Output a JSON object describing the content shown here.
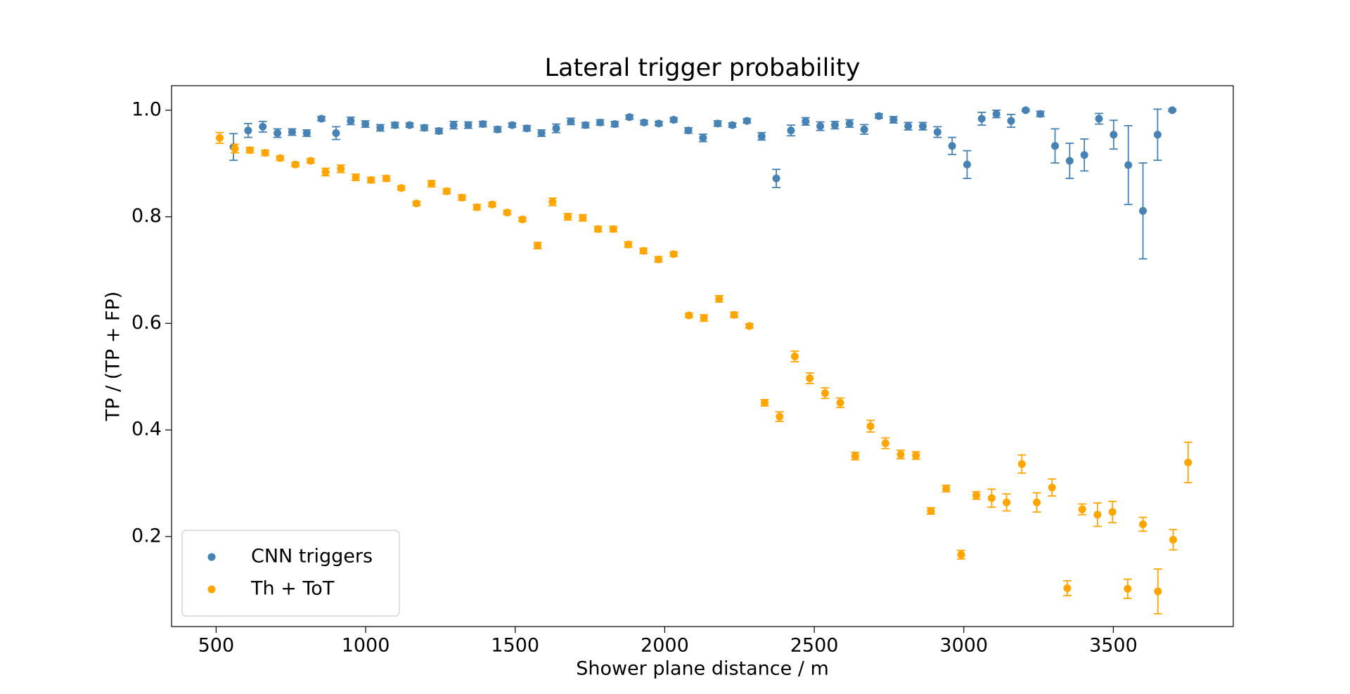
{
  "chart_data": {
    "type": "scatter",
    "title": "Lateral trigger probability",
    "x_label": "Shower plane distance / m",
    "y_label": "TP / (TP + FP)",
    "xlim": [
      351,
      3901
    ],
    "ylim": [
      0.031,
      1.046
    ],
    "xticks": [
      500,
      1000,
      1500,
      2000,
      2500,
      3000,
      3500
    ],
    "yticks": [
      0.2,
      0.4,
      0.6,
      0.8,
      {
        "value": 1,
        "label": "1.0"
      }
    ],
    "grid": false,
    "legend": "lower left",
    "series": [
      {
        "name": "CNN triggers",
        "color": "#4682b4",
        "x": [
          558,
          607,
          656,
          705,
          754,
          803,
          852,
          901,
          950,
          999,
          1049,
          1098,
          1147,
          1196,
          1245,
          1294,
          1343,
          1392,
          1441,
          1490,
          1539,
          1588,
          1637,
          1686,
          1735,
          1784,
          1833,
          1882,
          1931,
          1980,
          2030,
          2079,
          2128,
          2177,
          2226,
          2275,
          2324,
          2373,
          2422,
          2471,
          2520,
          2569,
          2618,
          2667,
          2716,
          2765,
          2814,
          2863,
          2912,
          2961,
          3011,
          3060,
          3109,
          3158,
          3207,
          3256,
          3305,
          3354,
          3403,
          3452,
          3501,
          3550,
          3599,
          3648,
          3697
        ],
        "values": [
          0.931,
          0.962,
          0.969,
          0.957,
          0.959,
          0.957,
          0.984,
          0.957,
          0.98,
          0.974,
          0.967,
          0.972,
          0.972,
          0.967,
          0.961,
          0.972,
          0.972,
          0.974,
          0.964,
          0.972,
          0.966,
          0.957,
          0.966,
          0.979,
          0.972,
          0.977,
          0.974,
          0.987,
          0.977,
          0.975,
          0.982,
          0.962,
          0.948,
          0.975,
          0.972,
          0.98,
          0.951,
          0.872,
          0.962,
          0.979,
          0.97,
          0.972,
          0.975,
          0.964,
          0.989,
          0.982,
          0.97,
          0.97,
          0.959,
          0.933,
          0.898,
          0.984,
          0.993,
          0.98,
          1.0,
          0.993,
          0.933,
          0.905,
          0.916,
          0.984,
          0.954,
          0.897,
          0.811,
          0.954,
          1.0
        ],
        "errors": [
          0.025,
          0.013,
          0.01,
          0.008,
          0.006,
          0.006,
          0.004,
          0.012,
          0.007,
          0.006,
          0.006,
          0.005,
          0.004,
          0.005,
          0.005,
          0.007,
          0.006,
          0.005,
          0.005,
          0.004,
          0.005,
          0.006,
          0.008,
          0.006,
          0.005,
          0.005,
          0.005,
          0.004,
          0.004,
          0.004,
          0.004,
          0.005,
          0.007,
          0.005,
          0.004,
          0.004,
          0.007,
          0.017,
          0.01,
          0.007,
          0.008,
          0.007,
          0.007,
          0.009,
          0.004,
          0.006,
          0.007,
          0.007,
          0.01,
          0.016,
          0.026,
          0.012,
          0.007,
          0.012,
          0.002,
          0.005,
          0.032,
          0.033,
          0.03,
          0.01,
          0.027,
          0.074,
          0.09,
          0.048,
          0.002
        ]
      },
      {
        "name": "Th + ToT",
        "color": "#ffa500",
        "x": [
          512,
          563,
          613,
          664,
          714,
          765,
          816,
          866,
          917,
          967,
          1018,
          1069,
          1119,
          1170,
          1220,
          1271,
          1322,
          1372,
          1423,
          1473,
          1524,
          1575,
          1625,
          1676,
          1726,
          1777,
          1828,
          1878,
          1929,
          1979,
          2030,
          2081,
          2131,
          2182,
          2232,
          2283,
          2334,
          2384,
          2435,
          2485,
          2536,
          2587,
          2637,
          2688,
          2738,
          2789,
          2840,
          2890,
          2941,
          2991,
          3042,
          3093,
          3143,
          3194,
          3244,
          3295,
          3346,
          3396,
          3447,
          3497,
          3548,
          3599,
          3649,
          3700,
          3750
        ],
        "values": [
          0.948,
          0.928,
          0.925,
          0.92,
          0.91,
          0.898,
          0.905,
          0.884,
          0.89,
          0.874,
          0.869,
          0.872,
          0.854,
          0.825,
          0.862,
          0.848,
          0.836,
          0.818,
          0.823,
          0.808,
          0.795,
          0.746,
          0.828,
          0.8,
          0.798,
          0.777,
          0.777,
          0.748,
          0.736,
          0.72,
          0.73,
          0.615,
          0.61,
          0.646,
          0.616,
          0.595,
          0.451,
          0.425,
          0.538,
          0.497,
          0.469,
          0.451,
          0.351,
          0.407,
          0.375,
          0.354,
          0.352,
          0.248,
          0.29,
          0.166,
          0.277,
          0.272,
          0.264,
          0.336,
          0.264,
          0.292,
          0.103,
          0.251,
          0.241,
          0.246,
          0.102,
          0.223,
          0.097,
          0.194,
          0.339
        ],
        "errors": [
          0.01,
          0.008,
          0.005,
          0.005,
          0.004,
          0.004,
          0.004,
          0.007,
          0.007,
          0.006,
          0.005,
          0.005,
          0.004,
          0.004,
          0.006,
          0.005,
          0.005,
          0.005,
          0.004,
          0.004,
          0.004,
          0.006,
          0.007,
          0.006,
          0.006,
          0.005,
          0.005,
          0.005,
          0.005,
          0.005,
          0.004,
          0.004,
          0.006,
          0.006,
          0.005,
          0.004,
          0.006,
          0.009,
          0.01,
          0.01,
          0.01,
          0.009,
          0.007,
          0.011,
          0.01,
          0.008,
          0.007,
          0.006,
          0.006,
          0.008,
          0.007,
          0.017,
          0.016,
          0.017,
          0.018,
          0.016,
          0.014,
          0.01,
          0.022,
          0.02,
          0.018,
          0.013,
          0.042,
          0.019,
          0.038
        ]
      }
    ]
  }
}
